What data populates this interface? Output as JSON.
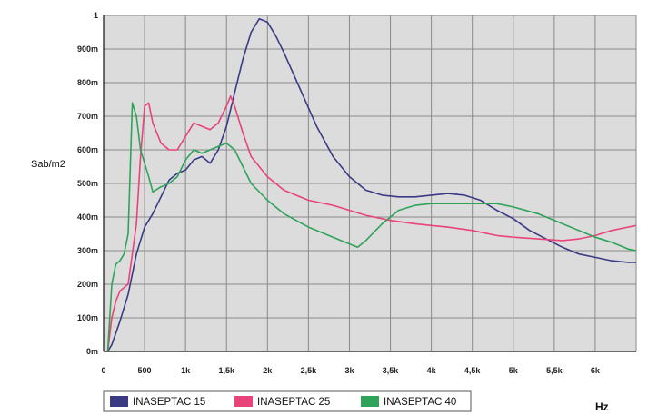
{
  "chart_data": {
    "type": "line",
    "ylabel": "Sab/m2",
    "xlabel": "Hz",
    "xlim": [
      0,
      6500
    ],
    "ylim": [
      0,
      1
    ],
    "x_ticks": [
      0,
      500,
      1000,
      1500,
      2000,
      2500,
      3000,
      3500,
      4000,
      4500,
      5000,
      5500,
      6000
    ],
    "x_tick_labels": [
      "0",
      "500",
      "1k",
      "1,5k",
      "2k",
      "2,5k",
      "3k",
      "3,5k",
      "4k",
      "4,5k",
      "5k",
      "5,5k",
      "6k"
    ],
    "y_ticks": [
      0,
      0.1,
      0.2,
      0.3,
      0.4,
      0.5,
      0.6,
      0.7,
      0.8,
      0.9,
      1.0
    ],
    "y_tick_labels": [
      "0m",
      "100m",
      "200m",
      "300m",
      "400m",
      "500m",
      "600m",
      "700m",
      "800m",
      "900m",
      "1"
    ],
    "grid": true,
    "legend_position": "bottom-left",
    "series": [
      {
        "name": "INASEPTAC 15",
        "color": "#3b3a85",
        "x": [
          50,
          100,
          200,
          300,
          400,
          500,
          600,
          700,
          800,
          900,
          1000,
          1100,
          1200,
          1300,
          1400,
          1500,
          1600,
          1700,
          1800,
          1900,
          2000,
          2100,
          2200,
          2400,
          2600,
          2800,
          3000,
          3200,
          3400,
          3600,
          3800,
          4000,
          4200,
          4400,
          4600,
          4800,
          5000,
          5200,
          5400,
          5600,
          5800,
          6000,
          6200,
          6400,
          6500
        ],
        "y": [
          0.0,
          0.02,
          0.09,
          0.17,
          0.29,
          0.37,
          0.41,
          0.46,
          0.51,
          0.53,
          0.54,
          0.57,
          0.58,
          0.56,
          0.6,
          0.67,
          0.77,
          0.87,
          0.95,
          0.99,
          0.98,
          0.94,
          0.89,
          0.78,
          0.67,
          0.58,
          0.52,
          0.48,
          0.465,
          0.46,
          0.46,
          0.465,
          0.47,
          0.465,
          0.45,
          0.42,
          0.395,
          0.36,
          0.335,
          0.31,
          0.29,
          0.28,
          0.27,
          0.265,
          0.265
        ]
      },
      {
        "name": "INASEPTAC 25",
        "color": "#e8447a",
        "x": [
          50,
          100,
          150,
          200,
          300,
          400,
          450,
          500,
          550,
          600,
          700,
          800,
          900,
          1000,
          1100,
          1200,
          1300,
          1400,
          1500,
          1550,
          1600,
          1700,
          1800,
          2000,
          2200,
          2500,
          2800,
          3000,
          3200,
          3500,
          3800,
          4000,
          4200,
          4500,
          4800,
          5000,
          5300,
          5600,
          5800,
          6000,
          6200,
          6400,
          6500
        ],
        "y": [
          0.0,
          0.1,
          0.15,
          0.18,
          0.2,
          0.38,
          0.58,
          0.73,
          0.74,
          0.68,
          0.62,
          0.6,
          0.6,
          0.64,
          0.68,
          0.67,
          0.66,
          0.68,
          0.73,
          0.76,
          0.73,
          0.65,
          0.58,
          0.52,
          0.48,
          0.45,
          0.435,
          0.42,
          0.405,
          0.39,
          0.38,
          0.375,
          0.37,
          0.36,
          0.345,
          0.34,
          0.335,
          0.33,
          0.335,
          0.345,
          0.36,
          0.37,
          0.375
        ]
      },
      {
        "name": "INASEPTAC 40",
        "color": "#2fa35a",
        "x": [
          50,
          100,
          150,
          200,
          250,
          300,
          350,
          400,
          450,
          500,
          550,
          600,
          700,
          800,
          900,
          1000,
          1100,
          1200,
          1300,
          1400,
          1500,
          1600,
          1700,
          1800,
          2000,
          2200,
          2500,
          2800,
          3000,
          3100,
          3200,
          3400,
          3600,
          3800,
          4000,
          4200,
          4500,
          4800,
          5000,
          5300,
          5600,
          5800,
          6000,
          6200,
          6400,
          6500
        ],
        "y": [
          0.0,
          0.2,
          0.26,
          0.27,
          0.29,
          0.35,
          0.74,
          0.7,
          0.6,
          0.56,
          0.52,
          0.475,
          0.49,
          0.5,
          0.52,
          0.57,
          0.6,
          0.59,
          0.6,
          0.61,
          0.62,
          0.6,
          0.55,
          0.5,
          0.45,
          0.41,
          0.37,
          0.34,
          0.32,
          0.31,
          0.33,
          0.38,
          0.42,
          0.435,
          0.44,
          0.44,
          0.44,
          0.44,
          0.43,
          0.41,
          0.38,
          0.36,
          0.34,
          0.325,
          0.305,
          0.3
        ]
      }
    ]
  }
}
